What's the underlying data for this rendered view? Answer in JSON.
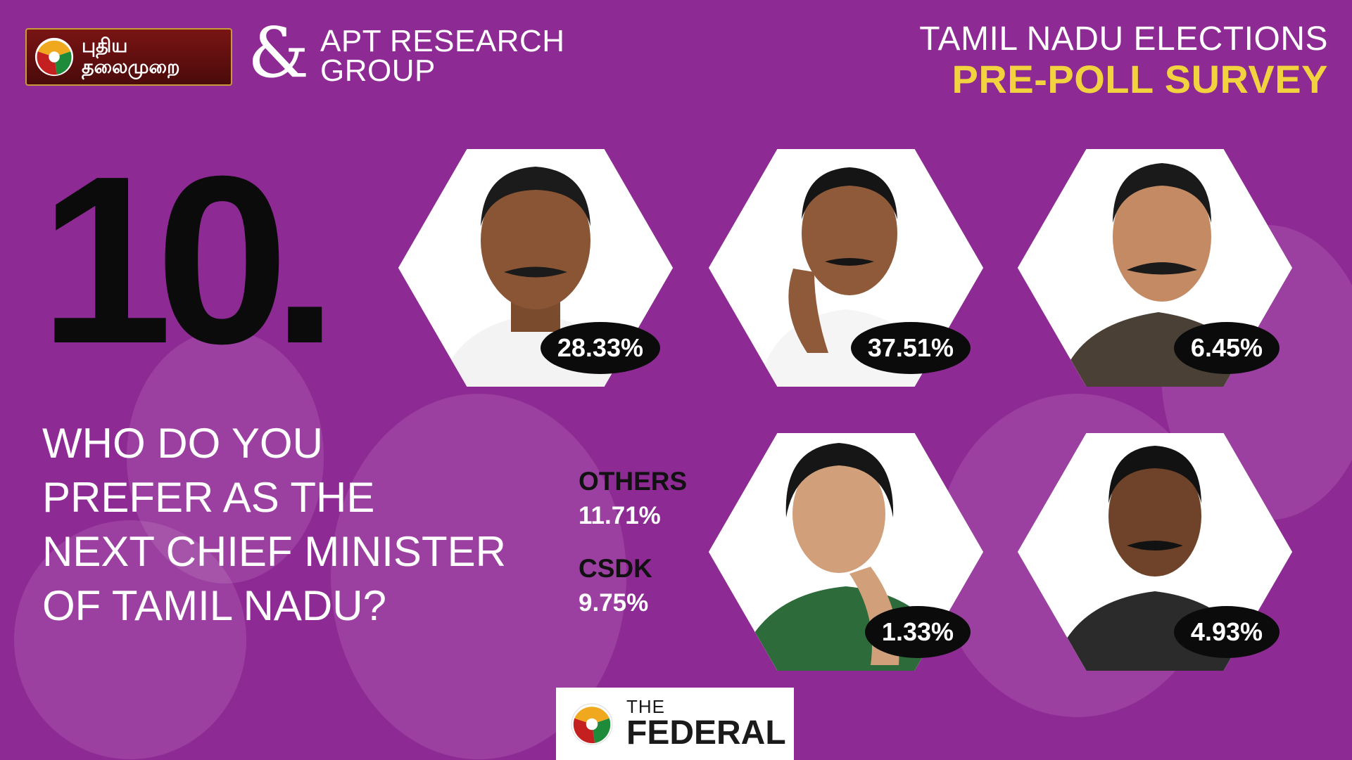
{
  "header": {
    "channel_logo_line1": "புதிய",
    "channel_logo_line2": "தலைமுறை",
    "partner_symbol": "&",
    "partner_line1": "APT RESEARCH",
    "partner_line2": "GROUP",
    "title_line1": "TAMIL NADU ELECTIONS",
    "title_line2": "PRE-POLL SURVEY"
  },
  "question": {
    "number": "10.",
    "lines": [
      "WHO DO YOU",
      "PREFER AS THE",
      "NEXT CHIEF MINISTER",
      "OF TAMIL NADU?"
    ]
  },
  "others": [
    {
      "label": "OTHERS",
      "value": "11.71%"
    },
    {
      "label": "CSDK",
      "value": "9.75%"
    }
  ],
  "candidates": [
    {
      "percent": "28.33%"
    },
    {
      "percent": "37.51%"
    },
    {
      "percent": "6.45%"
    },
    {
      "percent": "1.33%"
    },
    {
      "percent": "4.93%"
    }
  ],
  "footer": {
    "brand_small": "THE",
    "brand_large": "FEDERAL"
  },
  "colors": {
    "background": "#8e2a94",
    "accent_yellow": "#f2d33f",
    "badge": "#0b0b0b"
  }
}
